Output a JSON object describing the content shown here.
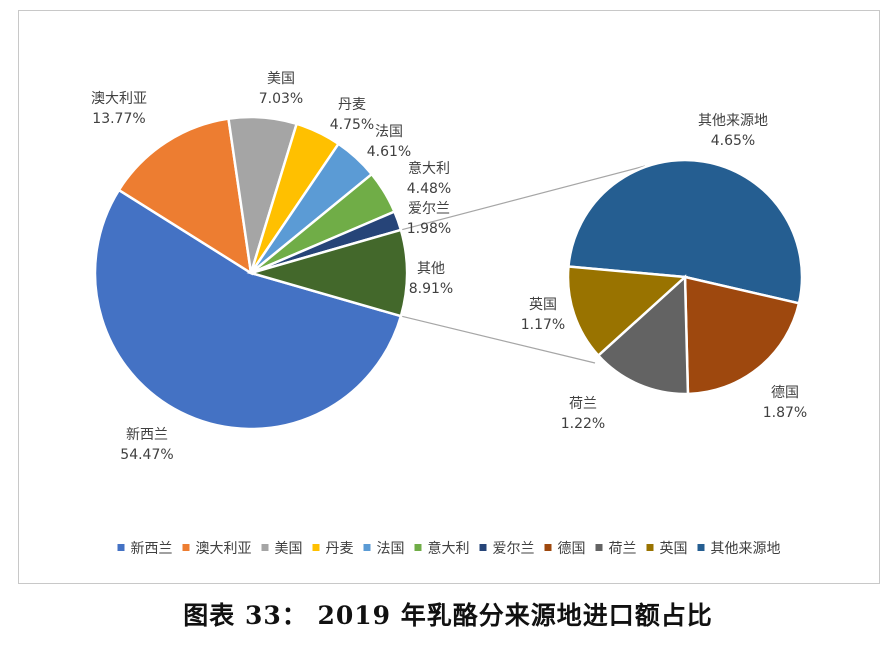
{
  "caption": "图表 33：  2019 年乳酪分来源地进口额占比",
  "chart_data": {
    "type": "pie",
    "main_pie": {
      "slices": [
        {
          "name": "新西兰",
          "value": 54.47,
          "label": "54.47%",
          "color": "#4472C4"
        },
        {
          "name": "澳大利亚",
          "value": 13.77,
          "label": "13.77%",
          "color": "#ED7D31"
        },
        {
          "name": "美国",
          "value": 7.03,
          "label": "7.03%",
          "color": "#A5A5A5"
        },
        {
          "name": "丹麦",
          "value": 4.75,
          "label": "4.75%",
          "color": "#FFC000"
        },
        {
          "name": "法国",
          "value": 4.61,
          "label": "4.61%",
          "color": "#5B9BD5"
        },
        {
          "name": "意大利",
          "value": 4.48,
          "label": "4.48%",
          "color": "#70AD47"
        },
        {
          "name": "爱尔兰",
          "value": 1.98,
          "label": "1.98%",
          "color": "#264478"
        },
        {
          "name": "其他",
          "value": 8.91,
          "label": "8.91%",
          "color": "#43682B"
        }
      ]
    },
    "secondary_pie": {
      "slices": [
        {
          "name": "其他来源地",
          "value": 4.65,
          "label": "4.65%",
          "color": "#255E91"
        },
        {
          "name": "德国",
          "value": 1.87,
          "label": "1.87%",
          "color": "#9E480E"
        },
        {
          "name": "荷兰",
          "value": 1.22,
          "label": "1.22%",
          "color": "#636363"
        },
        {
          "name": "英国",
          "value": 1.17,
          "label": "1.17%",
          "color": "#997300"
        }
      ]
    },
    "legend": {
      "position": "bottom",
      "items": [
        {
          "name": "新西兰",
          "color": "#4472C4"
        },
        {
          "name": "澳大利亚",
          "color": "#ED7D31"
        },
        {
          "name": "美国",
          "color": "#A5A5A5"
        },
        {
          "name": "丹麦",
          "color": "#FFC000"
        },
        {
          "name": "法国",
          "color": "#5B9BD5"
        },
        {
          "name": "意大利",
          "color": "#70AD47"
        },
        {
          "name": "爱尔兰",
          "color": "#264478"
        },
        {
          "name": "德国",
          "color": "#9E480E"
        },
        {
          "name": "荷兰",
          "color": "#636363"
        },
        {
          "name": "英国",
          "color": "#997300"
        },
        {
          "name": "其他来源地",
          "color": "#255E91"
        }
      ]
    }
  }
}
